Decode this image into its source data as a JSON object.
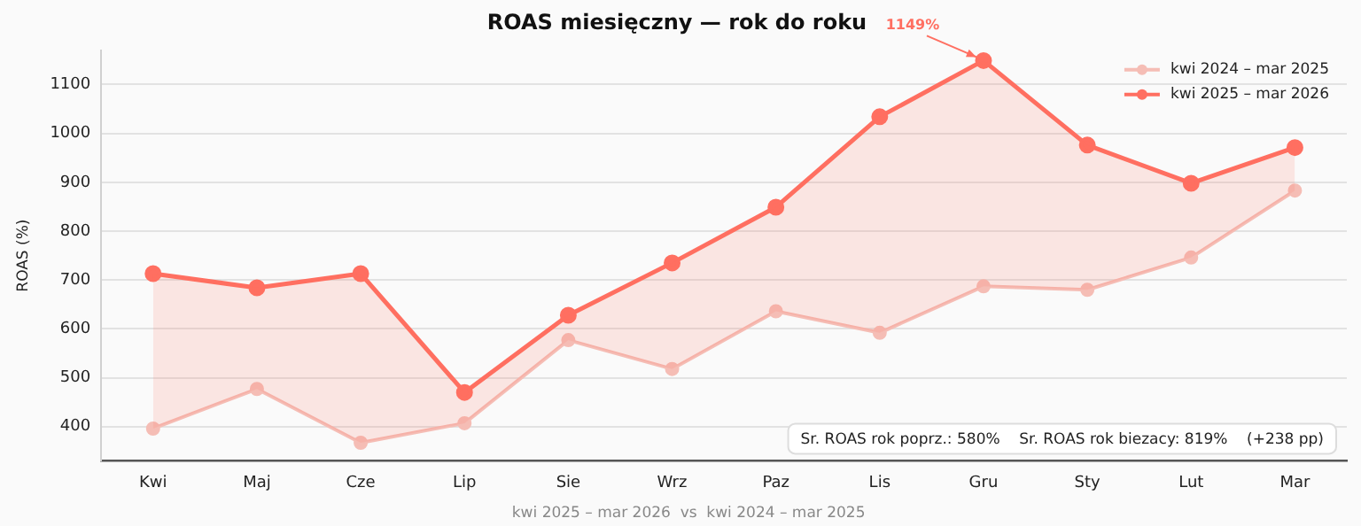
{
  "chart_data": {
    "type": "line",
    "title": "ROAS miesięczny — rok do roku",
    "ylabel": "ROAS (%)",
    "categories": [
      "Kwi",
      "Maj",
      "Cze",
      "Lip",
      "Sie",
      "Wrz",
      "Paz",
      "Lis",
      "Gru",
      "Sty",
      "Lut",
      "Mar"
    ],
    "series": [
      {
        "name": "kwi 2024 – mar 2025",
        "color": "#f5bdb5",
        "values": [
          396,
          477,
          367,
          407,
          577,
          518,
          636,
          592,
          687,
          680,
          746,
          883
        ]
      },
      {
        "name": "kwi 2025 – mar 2026",
        "color": "#ff6f61",
        "values": [
          713,
          684,
          713,
          470,
          628,
          735,
          849,
          1034,
          1149,
          976,
          898,
          971
        ],
        "lower": [
          396,
          477,
          367,
          407,
          577,
          518,
          636,
          592,
          687,
          680,
          746,
          883
        ],
        "upper": [
          713,
          684,
          713,
          470,
          628,
          735,
          849,
          1034,
          1149,
          976,
          898,
          971
        ]
      }
    ],
    "ylim": [
      330,
      1170
    ],
    "yticks": [
      400,
      500,
      600,
      700,
      800,
      900,
      1000,
      1100
    ],
    "grid": "y",
    "legend": "top right",
    "marker": "circle",
    "line_style": "solid",
    "annotations": [
      {
        "text": "1149%",
        "x": "Gru",
        "y": 1149
      },
      "Sr. ROAS rok poprz.: 580%    Sr. ROAS rok biezacy: 819%    (+238 pp)",
      "kwi 2025 – mar 2026  vs  kwi 2024 – mar 2025"
    ]
  }
}
